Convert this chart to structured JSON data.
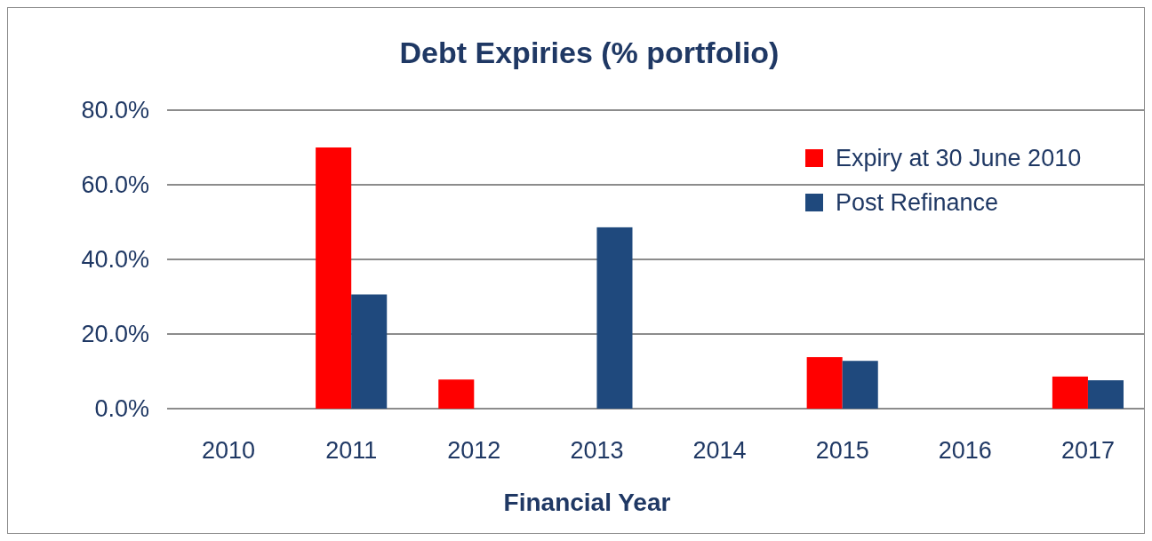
{
  "chart_data": {
    "type": "bar",
    "title": "Debt Expiries (% portfolio)",
    "xlabel": "Financial Year",
    "categories": [
      "2010",
      "2011",
      "2012",
      "2013",
      "2014",
      "2015",
      "2016",
      "2017"
    ],
    "series": [
      {
        "name": "Expiry at 30 June 2010",
        "color": "#ff0000",
        "values": [
          0,
          70.0,
          7.8,
          0,
          0,
          13.8,
          0,
          8.6
        ]
      },
      {
        "name": "Post Refinance",
        "color": "#1f497d",
        "values": [
          0,
          30.6,
          0,
          48.6,
          0,
          12.8,
          0,
          7.6
        ]
      }
    ],
    "ylim": [
      0,
      80
    ],
    "yticks": [
      {
        "value": 0,
        "label": "0.0%"
      },
      {
        "value": 20,
        "label": "20.0%"
      },
      {
        "value": 40,
        "label": "40.0%"
      },
      {
        "value": 60,
        "label": "60.0%"
      },
      {
        "value": 80,
        "label": "80.0%"
      }
    ],
    "grid": "y",
    "legend": "top right"
  }
}
